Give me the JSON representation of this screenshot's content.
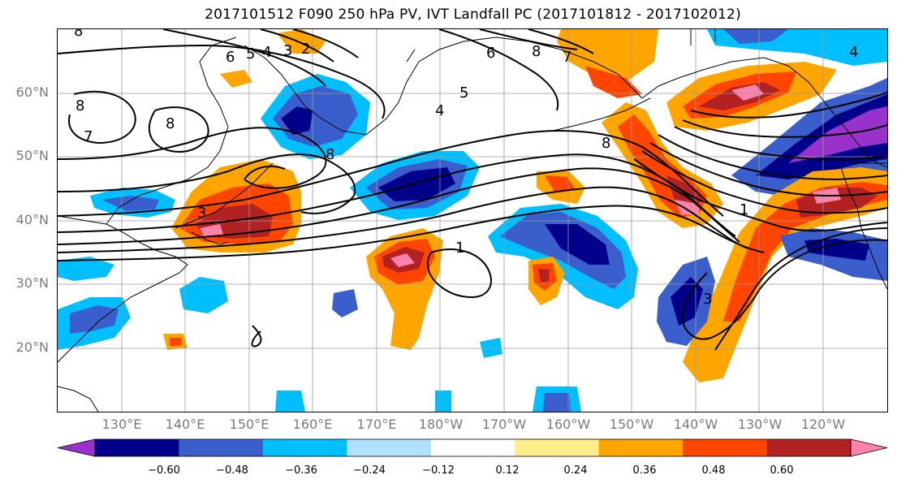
{
  "title": "2017101512 F090 250 hPa PV, IVT Landfall PC (2017101812 - 2017102012)",
  "lat_labels": [
    "60°N",
    "50°N",
    "40°N",
    "30°N",
    "20°N"
  ],
  "lon_labels": [
    "130°E",
    "140°E",
    "150°E",
    "160°E",
    "170°E",
    "180°W",
    "170°W",
    "160°W",
    "150°W",
    "140°W",
    "130°W",
    "120°W"
  ],
  "colorbar": {
    "ticks": [
      "−0.60",
      "−0.48",
      "−0.36",
      "−0.24",
      "−0.12",
      "0.12",
      "0.24",
      "0.36",
      "0.48",
      "0.60"
    ],
    "colors": [
      "#9932cc",
      "#00008b",
      "#3a5fcd",
      "#00bfff",
      "#b0e2ff",
      "#ffffff",
      "#ffec8b",
      "#ffa500",
      "#ff4500",
      "#b22222",
      "#ff82ab"
    ]
  },
  "contour_labels": [
    "8",
    "7",
    "6",
    "5",
    "4",
    "3",
    "2",
    "8",
    "8",
    "5",
    "4",
    "8",
    "7",
    "6",
    "8",
    "3",
    "4",
    "8",
    "1",
    "3",
    "1"
  ],
  "colors": {
    "purple": "#9932cc",
    "navy": "#00008b",
    "blue": "#3a5fcd",
    "sky": "#00bfff",
    "pale": "#b0e2ff",
    "yellow": "#ffec8b",
    "orange": "#ffa500",
    "red": "#ff4500",
    "darkred": "#b22222",
    "pink": "#ff82ab"
  }
}
